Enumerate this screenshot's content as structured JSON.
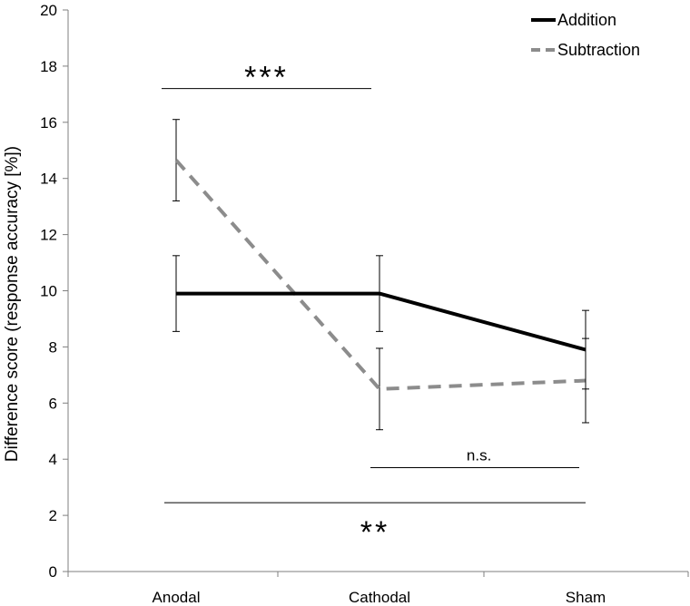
{
  "chart_data": {
    "type": "line",
    "title": "",
    "xlabel": "",
    "ylabel": "Difference score (response accuracy [%])",
    "categories": [
      "Anodal",
      "Cathodal",
      "Sham"
    ],
    "ylim": [
      0,
      20
    ],
    "yticks": [
      0,
      2,
      4,
      6,
      8,
      10,
      12,
      14,
      16,
      18,
      20
    ],
    "ytick_labels": [
      "0",
      "2",
      "4",
      "6",
      "8",
      "10",
      "12",
      "14",
      "16",
      "18",
      "20"
    ],
    "grid": false,
    "legend_position": "top-right",
    "series": [
      {
        "name": "Addition",
        "color": "#000000",
        "style": "solid",
        "values": [
          9.9,
          9.9,
          7.9
        ],
        "error": [
          1.35,
          1.35,
          1.4
        ]
      },
      {
        "name": "Subtraction",
        "color": "#8c8c8c",
        "style": "dashed",
        "values": [
          14.65,
          6.5,
          6.8
        ],
        "error": [
          1.45,
          1.45,
          1.5
        ]
      }
    ],
    "annotations": [
      {
        "text": "***",
        "from": "Anodal",
        "to": "Cathodal",
        "y": 17.2,
        "label_position": "above"
      },
      {
        "text": "n.s.",
        "from": "Cathodal",
        "to": "Sham",
        "y": 3.7,
        "label_position": "above"
      },
      {
        "text": "**",
        "from": "Anodal",
        "to": "Sham",
        "y": 2.45,
        "label_position": "below"
      }
    ]
  }
}
